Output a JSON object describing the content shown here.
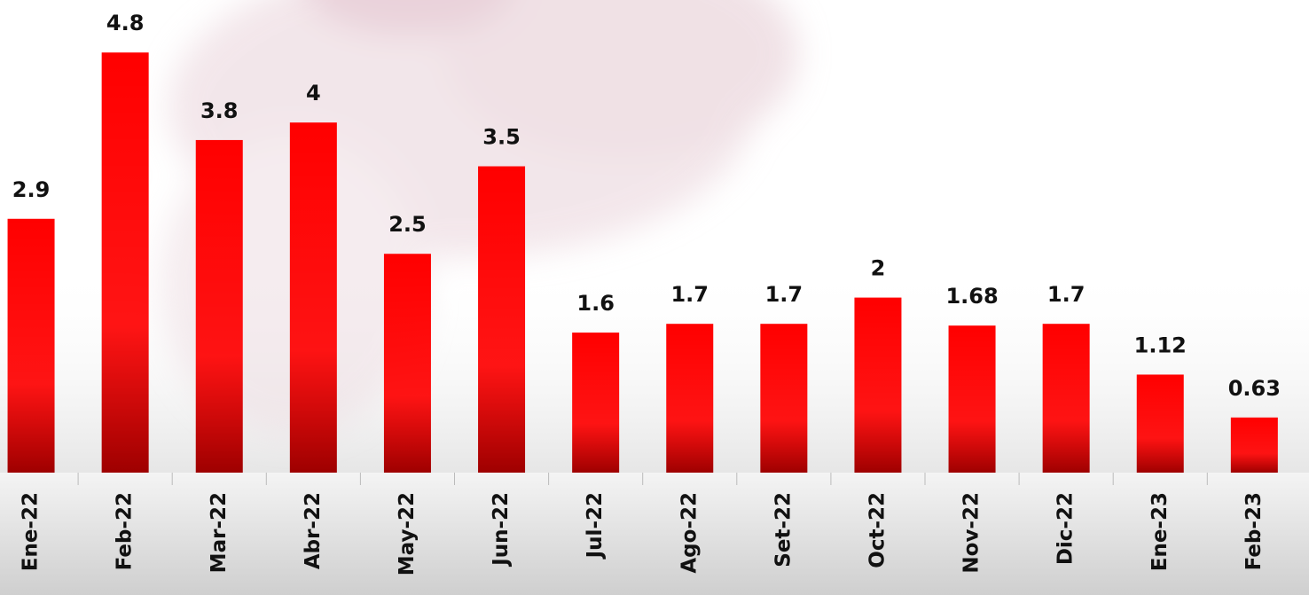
{
  "chart_data": {
    "type": "bar",
    "categories": [
      "Ene-22",
      "Feb-22",
      "Mar-22",
      "Abr-22",
      "May-22",
      "Jun-22",
      "Jul-22",
      "Ago-22",
      "Set-22",
      "Oct-22",
      "Nov-22",
      "Dic-22",
      "Ene-23",
      "Feb-23"
    ],
    "values": [
      2.9,
      4.8,
      3.8,
      4,
      2.5,
      3.5,
      1.6,
      1.7,
      1.7,
      2,
      1.68,
      1.7,
      1.12,
      0.63
    ],
    "color": "#ff0000",
    "ylim": [
      0,
      5.4
    ]
  }
}
